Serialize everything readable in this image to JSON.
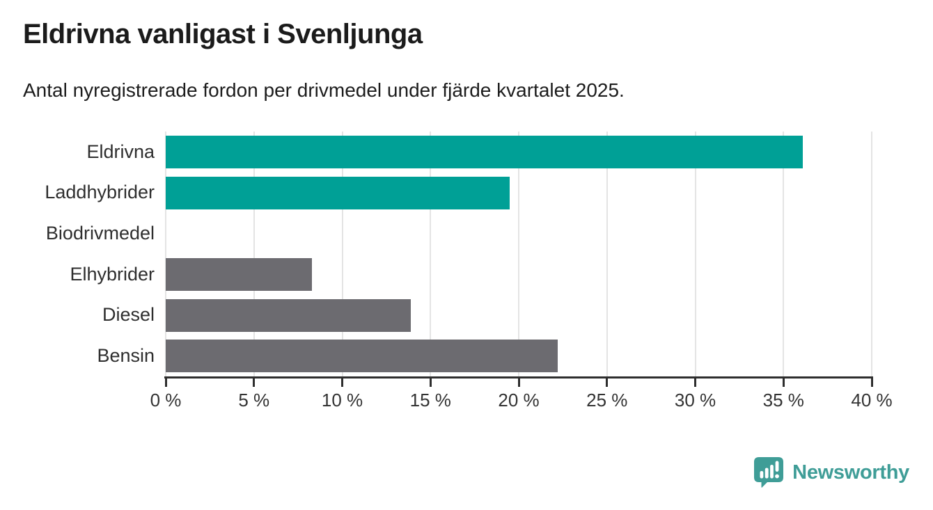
{
  "chart_data": {
    "type": "bar",
    "orientation": "horizontal",
    "title": "Eldrivna vanligast i Svenljunga",
    "subtitle": "Antal nyregistrerade fordon per drivmedel under fjärde kvartalet 2025.",
    "categories": [
      "Eldrivna",
      "Laddhybrider",
      "Biodrivmedel",
      "Elhybrider",
      "Diesel",
      "Bensin"
    ],
    "values": [
      36.1,
      19.5,
      0,
      8.3,
      13.9,
      22.2
    ],
    "unit": "%",
    "colors": [
      "#00A096",
      "#00A096",
      "#6C6B70",
      "#6C6B70",
      "#6C6B70",
      "#6C6B70"
    ],
    "accent_color": "#00A096",
    "default_color": "#6C6B70",
    "xlim": [
      0,
      40
    ],
    "xticks": [
      0,
      5,
      10,
      15,
      20,
      25,
      30,
      35,
      40
    ],
    "xtick_labels": [
      "0 %",
      "5 %",
      "10 %",
      "15 %",
      "20 %",
      "25 %",
      "30 %",
      "35 %",
      "40 %"
    ],
    "grid": "vertical",
    "gridline_color": "#E4E4E4",
    "axis_color": "#2E2E2E"
  },
  "footer": {
    "brand": "Newsworthy",
    "brand_color": "#3F9D97",
    "logo_icon": "bar-chart-speech-bubble-icon"
  }
}
